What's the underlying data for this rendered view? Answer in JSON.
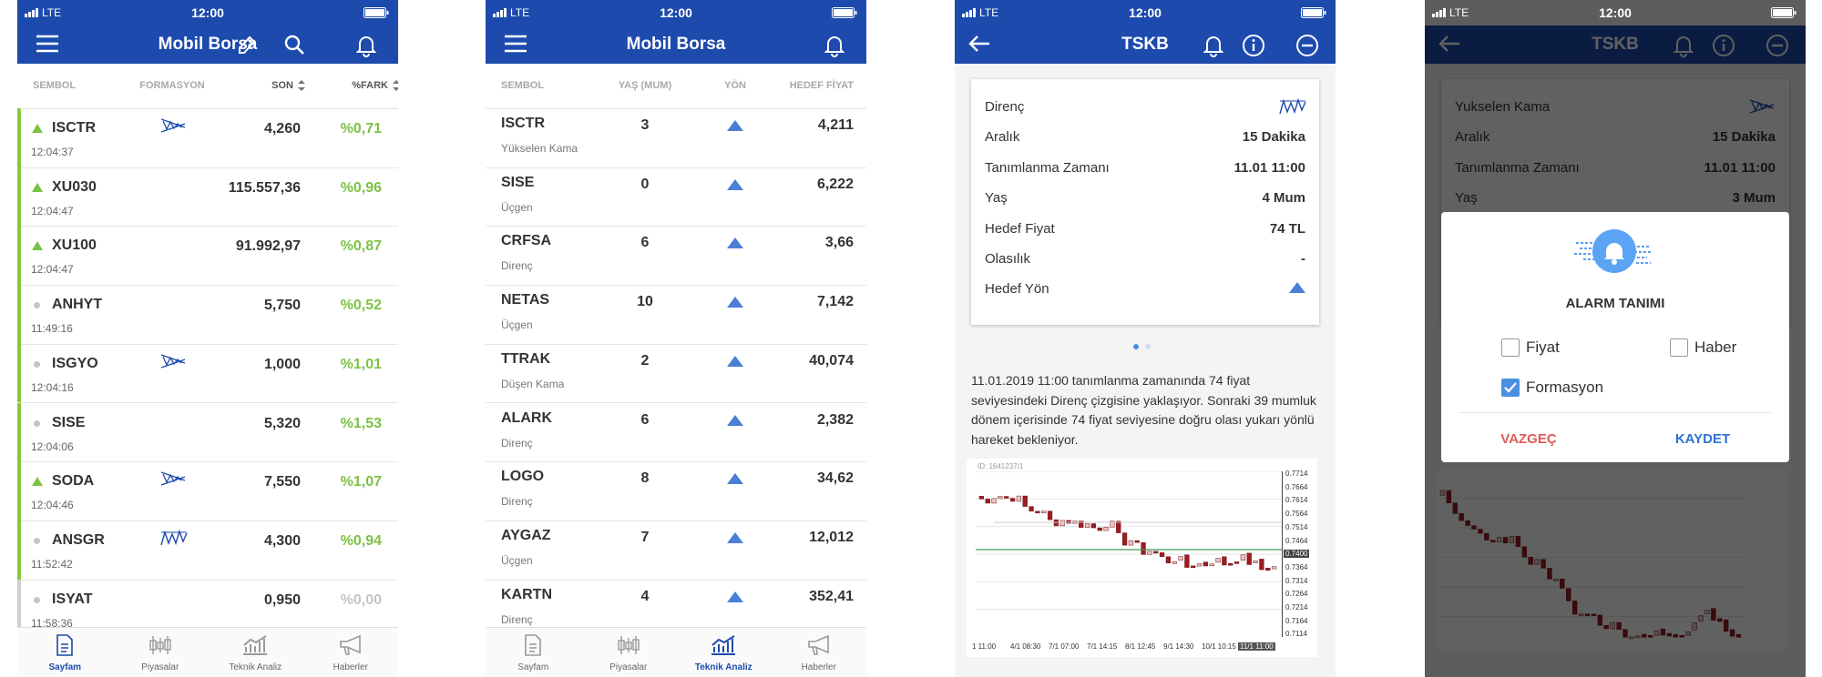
{
  "portfolio": {
    "status": {
      "network": "LTE",
      "time": "12:00"
    },
    "header": {
      "title": "Mobil Borsa"
    },
    "columns": [
      "SEMBOL",
      "FORMASYON",
      "SON",
      "%FARK"
    ],
    "rows": [
      {
        "symbol": "ISCTR",
        "time": "12:04:37",
        "price": "4,260",
        "change": "%0,71"
      },
      {
        "symbol": "XU030",
        "time": "12:04:47",
        "price": "115.557,36",
        "change": "%0,96"
      },
      {
        "symbol": "XU100",
        "time": "12:04:47",
        "price": "91.992,97",
        "change": "%0,87"
      },
      {
        "symbol": "ANHYT",
        "time": "11:49:16",
        "price": "5,750",
        "change": "%0,52"
      },
      {
        "symbol": "ISGYO",
        "time": "12:04:16",
        "price": "1,000",
        "change": "%1,01"
      },
      {
        "symbol": "SISE",
        "time": "12:04:06",
        "price": "5,320",
        "change": "%1,53"
      },
      {
        "symbol": "SODA",
        "time": "12:04:46",
        "price": "7,550",
        "change": "%1,07"
      },
      {
        "symbol": "ANSGR",
        "time": "11:52:42",
        "price": "4,300",
        "change": "%0,94"
      },
      {
        "symbol": "ISYAT",
        "time": "11:58:36",
        "price": "0,950",
        "change": "%0,00"
      }
    ],
    "tabs": [
      "Sayfam",
      "Piyasalar",
      "Teknik Analiz",
      "Haberler"
    ]
  },
  "technical": {
    "status": {
      "network": "LTE",
      "time": "12:00"
    },
    "header": {
      "title": "Mobil Borsa"
    },
    "columns": [
      "SEMBOL",
      "YAŞ (MUM)",
      "YÖN",
      "HEDEF FİYAT"
    ],
    "rows": [
      {
        "symbol": "ISCTR",
        "pattern": "Yükselen Kama",
        "age": "3",
        "target": "4,211"
      },
      {
        "symbol": "SISE",
        "pattern": "Üçgen",
        "age": "0",
        "target": "6,222"
      },
      {
        "symbol": "CRFSA",
        "pattern": "Direnç",
        "age": "6",
        "target": "3,66"
      },
      {
        "symbol": "NETAS",
        "pattern": "Üçgen",
        "age": "10",
        "target": "7,142"
      },
      {
        "symbol": "TTRAK",
        "pattern": "Düşen Kama",
        "age": "2",
        "target": "40,074"
      },
      {
        "symbol": "ALARK",
        "pattern": "Direnç",
        "age": "6",
        "target": "2,382"
      },
      {
        "symbol": "LOGO",
        "pattern": "Direnç",
        "age": "8",
        "target": "34,62"
      },
      {
        "symbol": "AYGAZ",
        "pattern": "Üçgen",
        "age": "7",
        "target": "12,012"
      },
      {
        "symbol": "KARTN",
        "pattern": "Direnç",
        "age": "4",
        "target": "352,41"
      }
    ],
    "tabs": [
      "Sayfam",
      "Piyasalar",
      "Teknik Analiz",
      "Haberler"
    ]
  },
  "detail": {
    "status": {
      "network": "LTE",
      "time": "12:00"
    },
    "header": {
      "title": "TSKB"
    },
    "card": {
      "rows": [
        {
          "label": "Direnç"
        },
        {
          "label": "Aralık",
          "value": "15 Dakika"
        },
        {
          "label": "Tanımlanma Zamanı",
          "value": "11.01 11:00"
        },
        {
          "label": "Yaş",
          "value": "4 Mum"
        },
        {
          "label": "Hedef Fiyat",
          "value": "74 TL"
        },
        {
          "label": "Olasılık",
          "value": "-"
        },
        {
          "label": "Hedef Yön"
        }
      ]
    },
    "description": "11.01.2019 11:00 tanımlanma zamanında 74 fiyat seviyesindeki Direnç çizgisine yaklaşıyor. Sonraki 39 mumluk dönem içerisinde 74 fiyat seviyesine doğru olası yukarı yönlü hareket bekleniyor.",
    "chart": {
      "id": "ID: 1641237/1",
      "y_labels": [
        "0.7714",
        "0.7664",
        "0.7614",
        "0.7564",
        "0.7514",
        "0.7464",
        "0.7400",
        "0.7364",
        "0.7314",
        "0.7264",
        "0.7214",
        "0.7164",
        "0.7114"
      ],
      "x_labels": [
        "1 11:00",
        "4/1 08:30",
        "7/1 07:00",
        "7/1 14:15",
        "8/1 12:45",
        "9/1 14:30",
        "10/1 10:15",
        "11/1 11:00"
      ]
    }
  },
  "alarm": {
    "status": {
      "network": "LTE",
      "time": "12:00"
    },
    "header": {
      "title": "TSKB"
    },
    "card": {
      "rows": [
        {
          "label": "Yukselen Kama"
        },
        {
          "label": "Aralık",
          "value": "15 Dakika"
        },
        {
          "label": "Tanımlanma Zamanı",
          "value": "11.01 11:00"
        },
        {
          "label": "Yaş",
          "value": "3 Mum"
        }
      ]
    },
    "dialog": {
      "title": "ALARM TANIMI",
      "options": [
        {
          "label": "Fiyat",
          "checked": false
        },
        {
          "label": "Haber",
          "checked": false
        },
        {
          "label": "Formasyon",
          "checked": true
        }
      ],
      "buttons": [
        "VAZGEÇ",
        "KAYDET"
      ]
    }
  }
}
